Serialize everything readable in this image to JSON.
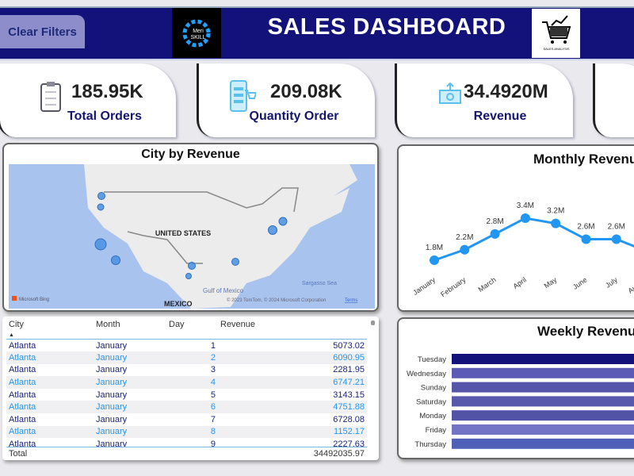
{
  "header": {
    "clear_filters": "Clear Filters",
    "title": "SALES DASHBOARD",
    "logo_left": "Meri SKILL",
    "logo_right": "SALES ANALYSIS"
  },
  "kpis": [
    {
      "value": "185.95K",
      "label": "Total Orders",
      "icon": "clipboard-icon"
    },
    {
      "value": "209.08K",
      "label": "Quantity Order",
      "icon": "mobile-cart-icon"
    },
    {
      "value": "34.4920M",
      "label": "Revenue",
      "icon": "money-icon"
    }
  ],
  "map": {
    "title": "City by Revenue",
    "country_label": "UNITED STATES",
    "gulf_label": "Gulf of Mexico",
    "sea_label": "Sargasso Sea",
    "mexico_label": "MEXICO",
    "attribution": "© 2023 TomTom, © 2024 Microsoft Corporation",
    "terms": "Terms",
    "bing": "Microsoft Bing",
    "bubble_color": "#4a90e2"
  },
  "table": {
    "columns": [
      "City",
      "Month",
      "Day",
      "Revenue"
    ],
    "rows": [
      [
        "Atlanta",
        "January",
        "1",
        "5073.02"
      ],
      [
        "Atlanta",
        "January",
        "2",
        "6090.95"
      ],
      [
        "Atlanta",
        "January",
        "3",
        "2281.95"
      ],
      [
        "Atlanta",
        "January",
        "4",
        "6747.21"
      ],
      [
        "Atlanta",
        "January",
        "5",
        "3143.15"
      ],
      [
        "Atlanta",
        "January",
        "6",
        "4751.88"
      ],
      [
        "Atlanta",
        "January",
        "7",
        "6728.08"
      ],
      [
        "Atlanta",
        "January",
        "8",
        "1152.17"
      ],
      [
        "Atlanta",
        "January",
        "9",
        "2227.63"
      ]
    ],
    "total_label": "Total",
    "total_value": "34492035.97"
  },
  "chart_data": [
    {
      "type": "line",
      "title": "Monthly Revenue",
      "categories": [
        "January",
        "February",
        "March",
        "April",
        "May",
        "June",
        "July",
        "August"
      ],
      "values": [
        1.8,
        2.2,
        2.8,
        3.4,
        3.2,
        2.6,
        2.6,
        null
      ],
      "labels": [
        "1.8M",
        "2.2M",
        "2.8M",
        "3.4M",
        "3.2M",
        "2.6M",
        "2.6M",
        ""
      ],
      "units": "M",
      "color": "#2196f3"
    },
    {
      "type": "bar",
      "orientation": "horizontal",
      "title": "Weekly Revenue",
      "categories": [
        "Tuesday",
        "Wednesday",
        "Sunday",
        "Saturday",
        "Monday",
        "Friday",
        "Thursday"
      ],
      "colors": [
        "#12127a",
        "#5b5bb5",
        "#5555aa",
        "#5858ad",
        "#5252a6",
        "#7474c6",
        "#5060b8"
      ]
    }
  ]
}
